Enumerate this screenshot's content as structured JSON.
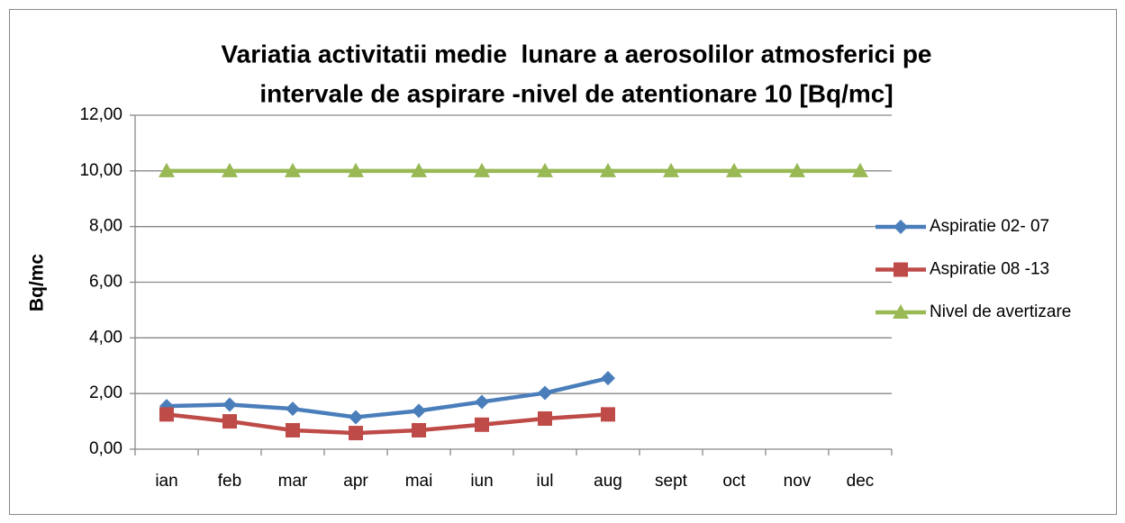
{
  "chart_data": {
    "type": "line",
    "title": [
      "Variatia activitatii medie  lunare a aerosolilor atmosferici pe",
      "intervale de aspirare -nivel de atentionare 10 [Bq/mc]"
    ],
    "y_label": "Bq/mc",
    "categories": [
      "ian",
      "feb",
      "mar",
      "apr",
      "mai",
      "iun",
      "iul",
      "aug",
      "sept",
      "oct",
      "nov",
      "dec"
    ],
    "series": [
      {
        "name": "Aspiratie 02- 07",
        "color": "#4a7ebb",
        "marker": "diamond",
        "values": [
          1.55,
          1.6,
          1.45,
          1.15,
          1.38,
          1.7,
          2.02,
          2.55,
          null,
          null,
          null,
          null
        ]
      },
      {
        "name": "Aspiratie 08 -13",
        "color": "#be4b48",
        "marker": "square",
        "values": [
          1.25,
          1.0,
          0.68,
          0.58,
          0.68,
          0.88,
          1.1,
          1.25,
          null,
          null,
          null,
          null
        ]
      },
      {
        "name": "Nivel de avertizare",
        "color": "#98b954",
        "marker": "triangle",
        "values": [
          10,
          10,
          10,
          10,
          10,
          10,
          10,
          10,
          10,
          10,
          10,
          10
        ]
      }
    ],
    "ylim": [
      0,
      12
    ],
    "yticks": [
      {
        "value": 0,
        "label": "0,00"
      },
      {
        "value": 2,
        "label": "2,00"
      },
      {
        "value": 4,
        "label": "4,00"
      },
      {
        "value": 6,
        "label": "6,00"
      },
      {
        "value": 8,
        "label": "8,00"
      },
      {
        "value": 10,
        "label": "10,00"
      },
      {
        "value": 12,
        "label": "12,00"
      }
    ],
    "grid": true,
    "legend": "right"
  }
}
